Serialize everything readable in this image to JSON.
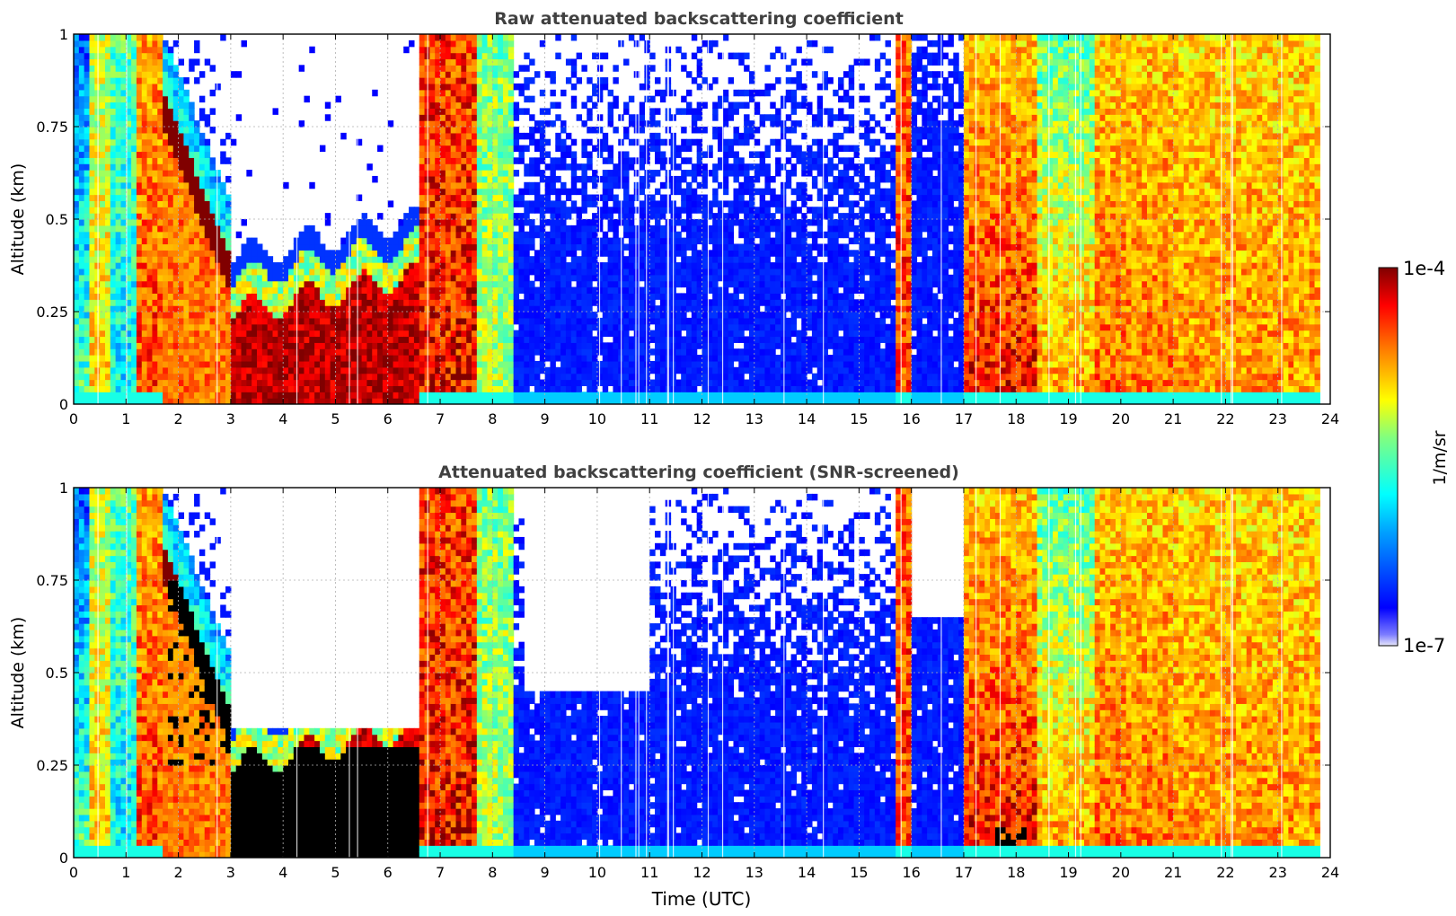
{
  "chart_data": [
    {
      "type": "heatmap",
      "title": "Raw attenuated backscattering coefficient",
      "xlabel": "",
      "ylabel": "Altitude (km)",
      "xlim": [
        0,
        24
      ],
      "ylim": [
        0,
        1
      ],
      "x_ticks": [
        "0",
        "1",
        "2",
        "3",
        "4",
        "5",
        "6",
        "7",
        "8",
        "9",
        "10",
        "11",
        "12",
        "13",
        "14",
        "15",
        "16",
        "17",
        "18",
        "19",
        "20",
        "21",
        "22",
        "23",
        "24"
      ],
      "y_ticks": [
        "0",
        "0.25",
        "0.5",
        "0.75",
        "1"
      ],
      "grid": true,
      "data_end_time": 23.8,
      "segments": [
        {
          "t": [
            0.0,
            0.3
          ],
          "regime": "low-aerosol",
          "level_low": 0.45,
          "level_high": 0.2
        },
        {
          "t": [
            0.3,
            0.7
          ],
          "regime": "mixed",
          "level_low": 0.7,
          "level_high": 0.55
        },
        {
          "t": [
            0.7,
            1.2
          ],
          "regime": "low-aerosol",
          "level_low": 0.35,
          "level_high": 0.45
        },
        {
          "t": [
            1.2,
            1.7
          ],
          "regime": "high-backscatter",
          "level_low": 0.85,
          "level_high": 0.75
        },
        {
          "t": [
            1.7,
            3.0
          ],
          "regime": "descending-layer",
          "layer_top_km": [
            0.8,
            0.35
          ]
        },
        {
          "t": [
            3.0,
            6.6
          ],
          "regime": "boundary-layer-cloudfree-above",
          "layer_top_km": [
            0.3,
            0.4
          ]
        },
        {
          "t": [
            6.6,
            7.7
          ],
          "regime": "high-backscatter",
          "level_low": 0.9,
          "level_high": 0.85
        },
        {
          "t": [
            7.7,
            8.4
          ],
          "regime": "mixed",
          "level_low": 0.55,
          "level_high": 0.5
        },
        {
          "t": [
            8.4,
            15.7
          ],
          "regime": "clean-noisy",
          "noise_base_km": 0.35
        },
        {
          "t": [
            15.7,
            16.0
          ],
          "regime": "high-backscatter",
          "level_low": 0.85,
          "level_high": 0.8
        },
        {
          "t": [
            16.0,
            17.0
          ],
          "regime": "clean-noisy",
          "noise_base_km": 0.6
        },
        {
          "t": [
            17.0,
            18.4
          ],
          "regime": "high-backscatter",
          "level_low": 0.9,
          "level_high": 0.7
        },
        {
          "t": [
            18.4,
            19.5
          ],
          "regime": "mixed",
          "level_low": 0.75,
          "level_high": 0.45
        },
        {
          "t": [
            19.5,
            21.0
          ],
          "regime": "high-backscatter",
          "level_low": 0.8,
          "level_high": 0.7
        },
        {
          "t": [
            21.0,
            23.8
          ],
          "regime": "high-backscatter",
          "level_low": 0.76,
          "level_high": 0.68
        }
      ]
    },
    {
      "type": "heatmap",
      "title": "Attenuated backscattering coefficient (SNR-screened)",
      "xlabel": "Time (UTC)",
      "ylabel": "Altitude (km)",
      "xlim": [
        0,
        24
      ],
      "ylim": [
        0,
        1
      ],
      "x_ticks": [
        "0",
        "1",
        "2",
        "3",
        "4",
        "5",
        "6",
        "7",
        "8",
        "9",
        "10",
        "11",
        "12",
        "13",
        "14",
        "15",
        "16",
        "17",
        "18",
        "19",
        "20",
        "21",
        "22",
        "23",
        "24"
      ],
      "y_ticks": [
        "0",
        "0.25",
        "0.5",
        "0.75",
        "1"
      ],
      "grid": true,
      "data_end_time": 23.8,
      "screened_out_above_km": [
        {
          "t": [
            3.0,
            6.6
          ],
          "top_km": 0.35
        },
        {
          "t": [
            8.6,
            11.0
          ],
          "top_km": 0.45
        },
        {
          "t": [
            16.0,
            17.0
          ],
          "top_km": 0.65
        }
      ],
      "saturated_regions": [
        {
          "t": [
            1.8,
            3.0
          ],
          "alt_km": [
            0.25,
            0.75
          ]
        },
        {
          "t": [
            3.0,
            6.6
          ],
          "alt_km": [
            0.0,
            0.3
          ]
        },
        {
          "t": [
            17.6,
            18.2
          ],
          "alt_km": [
            0.0,
            0.08
          ]
        }
      ]
    }
  ],
  "colorbar": {
    "label": "1/m/sr",
    "max_label": "1e-4",
    "min_label": "1e-7",
    "colormap": "jet",
    "scale": "log",
    "saturated_color": "#000000",
    "screened_color": "#ffffff"
  }
}
